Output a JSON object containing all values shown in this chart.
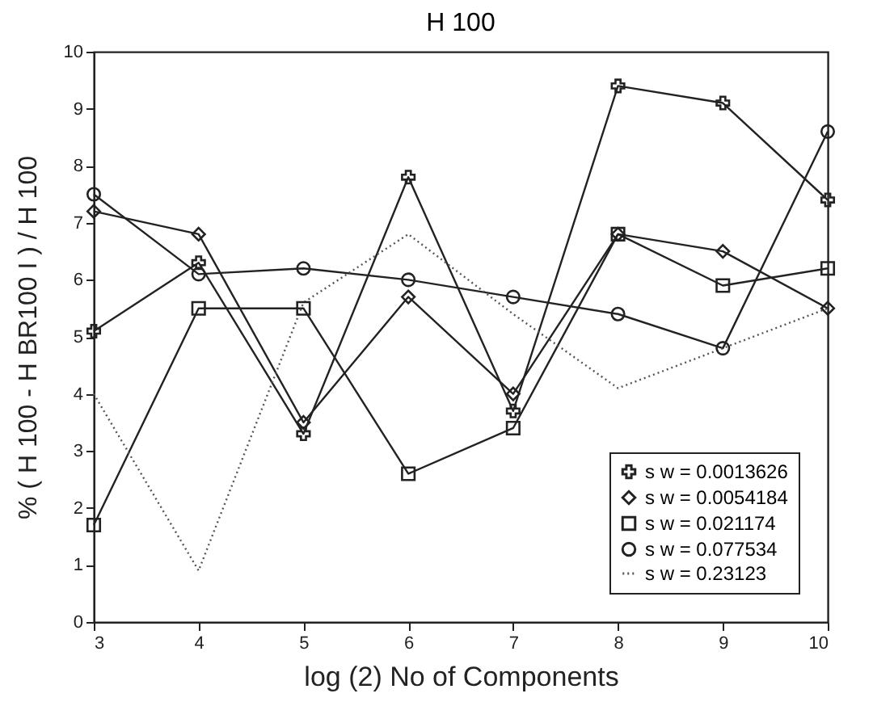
{
  "chart_data": {
    "type": "line",
    "title": "H 100",
    "xlabel": "log (2) No of Components",
    "ylabel": "% ( H 100 - H BR100 I ) / H 100",
    "x": [
      3,
      4,
      5,
      6,
      7,
      8,
      9,
      10
    ],
    "series": [
      {
        "name": "s w = 0.0013626",
        "color": "#222222",
        "marker": "cross",
        "line_style": "solid",
        "values": [
          5.1,
          6.3,
          3.3,
          7.8,
          3.7,
          9.4,
          9.1,
          7.4
        ]
      },
      {
        "name": "s w = 0.0054184",
        "color": "#222222",
        "marker": "diamond",
        "line_style": "solid",
        "values": [
          7.2,
          6.8,
          3.5,
          5.7,
          4.0,
          6.8,
          6.5,
          5.5
        ]
      },
      {
        "name": "s w = 0.021174",
        "color": "#222222",
        "marker": "square",
        "line_style": "solid",
        "values": [
          1.7,
          5.5,
          5.5,
          2.6,
          3.4,
          6.8,
          5.9,
          6.2
        ]
      },
      {
        "name": "s w = 0.077534",
        "color": "#222222",
        "marker": "circle",
        "line_style": "solid",
        "values": [
          7.5,
          6.1,
          6.2,
          6.0,
          5.7,
          5.4,
          4.8,
          8.6
        ]
      },
      {
        "name": "s w = 0.23123",
        "color": "#555555",
        "marker": "none",
        "line_style": "dotted",
        "values": [
          4.0,
          0.9,
          5.6,
          6.8,
          5.4,
          4.1,
          4.8,
          5.5
        ]
      }
    ],
    "xlim": [
      3,
      10
    ],
    "ylim": [
      0,
      10
    ],
    "xticks": [
      3,
      4,
      5,
      6,
      7,
      8,
      9,
      10
    ],
    "yticks": [
      0,
      1,
      2,
      3,
      4,
      5,
      6,
      7,
      8,
      9,
      10
    ],
    "grid": false,
    "legend": "bottom right"
  }
}
